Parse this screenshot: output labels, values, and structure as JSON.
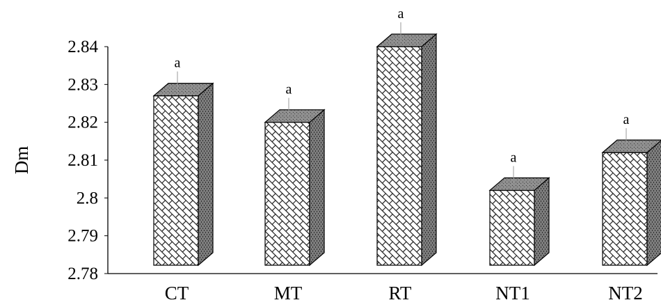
{
  "chart_data": {
    "type": "bar",
    "title": "",
    "xlabel": "",
    "ylabel": "Dm",
    "ylim": [
      2.78,
      2.84
    ],
    "yticks": [
      "2.78",
      "2.79",
      "2.8",
      "2.81",
      "2.82",
      "2.83",
      "2.84"
    ],
    "categories": [
      "CT",
      "MT",
      "RT",
      "NT1",
      "NT2"
    ],
    "values": [
      2.827,
      2.82,
      2.84,
      2.802,
      2.812
    ],
    "data_labels": [
      "a",
      "a",
      "a",
      "a",
      "a"
    ],
    "grid": false,
    "style": "3d-column",
    "colors": {
      "front_fill": "#ffffff",
      "front_pattern_line": "#1a1a1a",
      "top_face": "#8c8c8c",
      "side_face": "#7a7a7a",
      "outline": "#000000"
    }
  }
}
